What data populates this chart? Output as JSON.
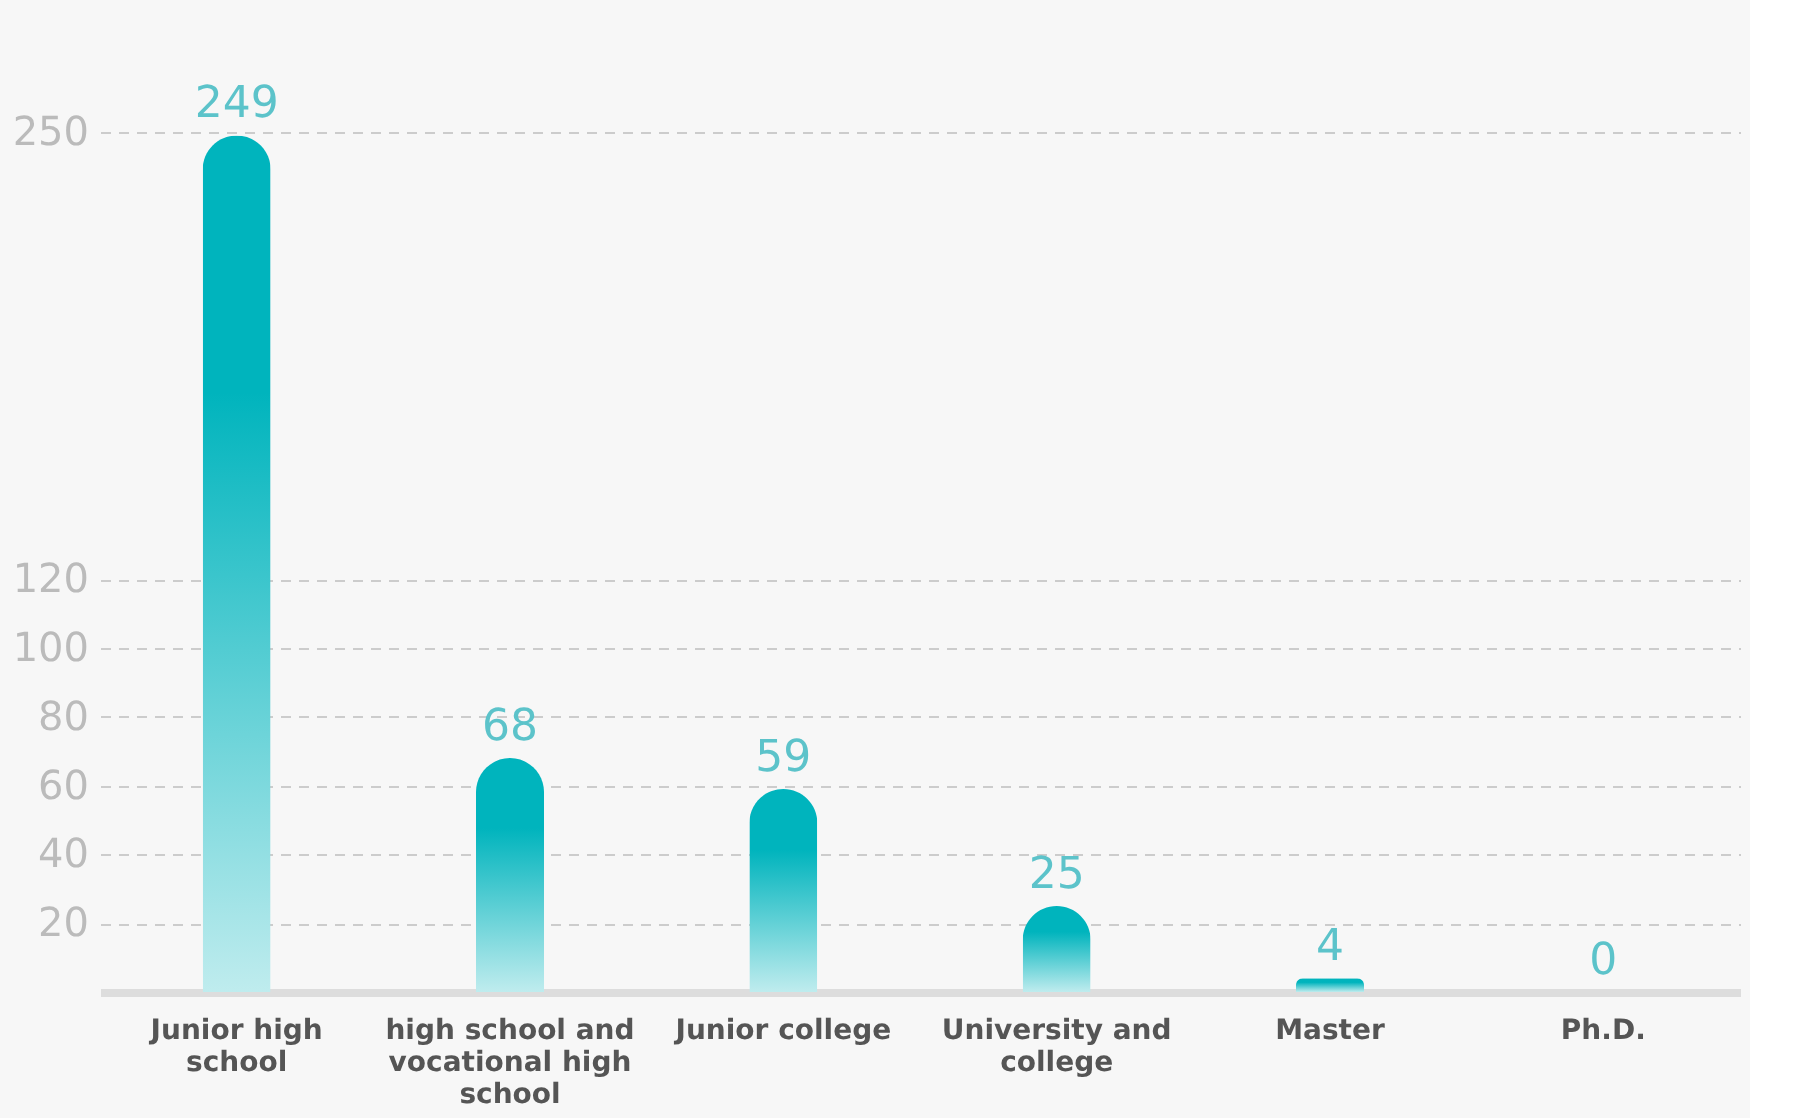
{
  "chart_data": {
    "type": "bar",
    "categories": [
      "Junior high school",
      "high school and vocational high school",
      "Junior college",
      "University and college",
      "Master",
      "Ph.D."
    ],
    "values": [
      249,
      68,
      59,
      25,
      4,
      0
    ],
    "color": "#00b4bd",
    "ylim": [
      0,
      250
    ],
    "yticks": [
      20,
      40,
      60,
      80,
      100,
      120,
      250
    ],
    "grid": "y",
    "data_labels": true
  }
}
